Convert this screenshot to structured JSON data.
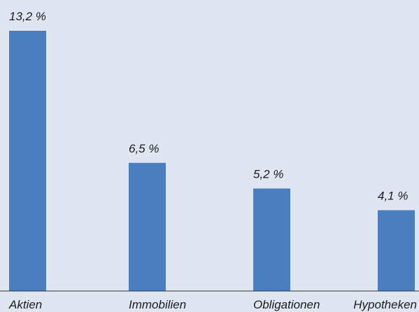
{
  "chart_data": {
    "type": "bar",
    "title": "",
    "xlabel": "",
    "ylabel": "",
    "categories": [
      "Aktien",
      "Immobilien",
      "Obligationen",
      "Hypotheken"
    ],
    "values": [
      13.2,
      6.5,
      5.2,
      4.1
    ],
    "value_labels": [
      "13,2 %",
      "6,5 %",
      "5,2 %",
      "4,1 %"
    ],
    "ylim": [
      0,
      13.2
    ],
    "grid": false,
    "legend": "none",
    "colors": {
      "bar": "#4a7ebf",
      "background": "#dfe6f2",
      "axis": "#333333"
    }
  }
}
